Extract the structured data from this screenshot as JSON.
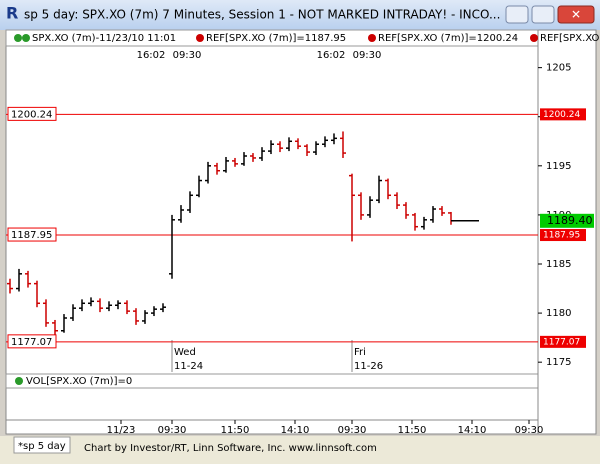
{
  "window_title": "sp 5 day: SPX.XO (7m) 7 Minutes, Session 1 - NOT MARKED INTRADAY! - INCO...",
  "legend": [
    "SPX.XO (7m)-11/23/10 11:01",
    "REF[SPX.XO (7m)]=1187.95",
    "REF[SPX.XO (7m)]=1200.24",
    "REF[SPX.XO (7m)..."
  ],
  "volume_label": "VOL[SPX.XO (7m)]=0",
  "tab": "*sp 5 day",
  "status": "Chart by Investor/RT, Linn Software, Inc. www.linnsoft.com",
  "chart_data": {
    "type": "candlestick",
    "x": [
      0,
      3,
      6,
      9,
      12,
      15,
      18,
      21,
      24,
      27,
      30,
      33,
      36,
      39,
      42,
      45,
      48,
      51,
      54,
      57,
      60,
      63,
      66,
      69,
      72,
      75,
      78,
      81,
      84,
      87,
      90,
      93,
      96,
      99,
      102,
      105,
      108,
      111,
      114,
      117,
      120,
      123,
      126,
      129,
      132,
      135,
      138,
      141,
      144,
      147
    ],
    "open": [
      1183,
      1182.5,
      1184,
      1183,
      1181,
      1179,
      1178.2,
      1179.5,
      1180.5,
      1181,
      1181.2,
      1180.5,
      1180.8,
      1181,
      1180.2,
      1179.2,
      1180,
      1180.4,
      1184,
      1189.5,
      1190.5,
      1192,
      1193.5,
      1195,
      1194.5,
      1195.5,
      1195.2,
      1196,
      1195.8,
      1196.5,
      1197.2,
      1196.8,
      1197.5,
      1197,
      1196.4,
      1197.2,
      1197.6,
      1197.8,
      1194,
      1192,
      1190,
      1191.5,
      1193.5,
      1192,
      1191,
      1190,
      1188.8,
      1189.5,
      1190.6,
      1190.2
    ],
    "high": [
      1183.5,
      1184.5,
      1184.3,
      1183.3,
      1181.4,
      1179.3,
      1179.9,
      1180.9,
      1181.4,
      1181.6,
      1181.5,
      1181.2,
      1181.3,
      1181.3,
      1180.5,
      1180.3,
      1180.7,
      1181,
      1190,
      1191,
      1192.4,
      1194,
      1195.4,
      1195.3,
      1195.9,
      1195.8,
      1196.4,
      1196.3,
      1196.9,
      1197.6,
      1197.5,
      1197.9,
      1197.8,
      1197.2,
      1197.5,
      1198,
      1198.3,
      1198.5,
      1194.2,
      1192.3,
      1191.9,
      1194,
      1193.7,
      1192.3,
      1191.3,
      1190.2,
      1189.8,
      1190.9,
      1190.9,
      1190.3
    ],
    "low": [
      1182,
      1182.2,
      1182.6,
      1180.6,
      1178.6,
      1177.8,
      1178,
      1179.2,
      1180.2,
      1180.7,
      1180.1,
      1180.2,
      1180.4,
      1179.9,
      1178.8,
      1178.9,
      1179.7,
      1180.1,
      1183.5,
      1189.2,
      1190.2,
      1191.8,
      1193.2,
      1194.1,
      1194.3,
      1194.9,
      1195,
      1195.4,
      1195.5,
      1196.2,
      1196.4,
      1196.5,
      1196.7,
      1196,
      1196.1,
      1196.9,
      1197.2,
      1195.8,
      1187.3,
      1189.5,
      1189.7,
      1191.2,
      1191.6,
      1190.6,
      1189.6,
      1188.4,
      1188.5,
      1189.2,
      1189.9,
      1189
    ],
    "close": [
      1182.5,
      1184,
      1183,
      1181,
      1179,
      1178.2,
      1179.5,
      1180.5,
      1181,
      1181.2,
      1180.5,
      1180.8,
      1181,
      1180.2,
      1179.2,
      1180,
      1180.4,
      1180.6,
      1189.5,
      1190.5,
      1192,
      1193.5,
      1195,
      1194.5,
      1195.5,
      1195.2,
      1196,
      1195.8,
      1196.5,
      1197.2,
      1196.8,
      1197.5,
      1197,
      1196.4,
      1197.2,
      1197.6,
      1197.8,
      1196.3,
      1192,
      1190,
      1191.5,
      1193.5,
      1192,
      1191,
      1190,
      1188.8,
      1189.5,
      1190.6,
      1190.2,
      1189.4
    ],
    "last": 1189.4,
    "last_label": "1189.40",
    "up_color": "#000000",
    "down_color": "#cc0000",
    "ref_color": "#ee0000",
    "last_color": "#00cc00",
    "ref_lines": [
      {
        "value": 1200.24,
        "label": "1200.24"
      },
      {
        "value": 1187.95,
        "label": "1187.95"
      },
      {
        "value": 1177.07,
        "label": "1177.07"
      }
    ],
    "xlim": [
      0,
      175
    ],
    "ylim": [
      1174,
      1207
    ],
    "yticks": [
      1175,
      1180,
      1185,
      1190,
      1195,
      1200,
      1205
    ],
    "xticks": [
      {
        "value": 37,
        "label": "11/23"
      },
      {
        "value": 54,
        "label": "09:30"
      },
      {
        "value": 75,
        "label": "11:50"
      },
      {
        "value": 95,
        "label": "14:10"
      },
      {
        "value": 114,
        "label": "09:30"
      },
      {
        "value": 134,
        "label": "11:50"
      },
      {
        "value": 154,
        "label": "14:10"
      },
      {
        "value": 173,
        "label": "09:30"
      }
    ],
    "session_labels": [
      {
        "value": 47,
        "label": "16:02"
      },
      {
        "value": 59,
        "label": "09:30"
      },
      {
        "value": 107,
        "label": "16:02"
      },
      {
        "value": 119,
        "label": "09:30"
      }
    ],
    "day_labels": [
      {
        "value": 54,
        "label": "Wed",
        "date": "11-24"
      },
      {
        "value": 114,
        "label": "Fri",
        "date": "11-26"
      }
    ]
  }
}
